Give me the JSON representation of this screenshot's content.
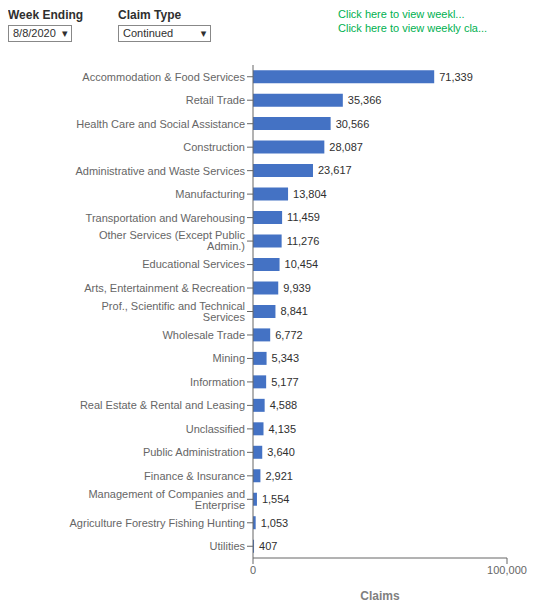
{
  "chart_data": {
    "type": "bar",
    "orientation": "horizontal",
    "xlabel": "Claims",
    "categories": [
      "Accommodation & Food Services",
      "Retail Trade",
      "Health Care and Social Assistance",
      "Construction",
      "Administrative and Waste Services",
      "Manufacturing",
      "Transportation and Warehousing",
      "Other Services (Except Public Admin.)",
      "Educational Services",
      "Arts, Entertainment & Recreation",
      "Prof., Scientific and Technical Services",
      "Wholesale Trade",
      "Mining",
      "Information",
      "Real Estate & Rental and Leasing",
      "Unclassified",
      "Public Administration",
      "Finance & Insurance",
      "Management of Companies and Enterprise",
      "Agriculture Forestry Fishing Hunting",
      "Utilities"
    ],
    "values": [
      71339,
      35366,
      30566,
      28087,
      23617,
      13804,
      11459,
      11276,
      10454,
      9939,
      8841,
      6772,
      5343,
      5177,
      4588,
      4135,
      3640,
      2921,
      1554,
      1053,
      407
    ],
    "value_labels": [
      "71,339",
      "35,366",
      "30,566",
      "28,087",
      "23,617",
      "13,804",
      "11,459",
      "11,276",
      "10,454",
      "9,939",
      "8,841",
      "6,772",
      "5,343",
      "5,177",
      "4,588",
      "4,135",
      "3,640",
      "2,921",
      "1,554",
      "1,053",
      "407"
    ],
    "data_labels": true,
    "color": "#4472C4",
    "xlim": [
      0,
      100000
    ],
    "xticks": [
      0,
      {
        "value": 100000,
        "label": "100,000"
      }
    ],
    "annotations": [
      {
        "text": "Week Ending"
      },
      {
        "text": "8/8/2020  ▾"
      },
      {
        "text": "Claim Type"
      },
      {
        "text": "Continued         ▾"
      },
      {
        "text": "Click here to view weekl...",
        "color": "#00b050"
      },
      {
        "text": "Click here to view weekly cla...",
        "color": "#00b050"
      }
    ]
  }
}
